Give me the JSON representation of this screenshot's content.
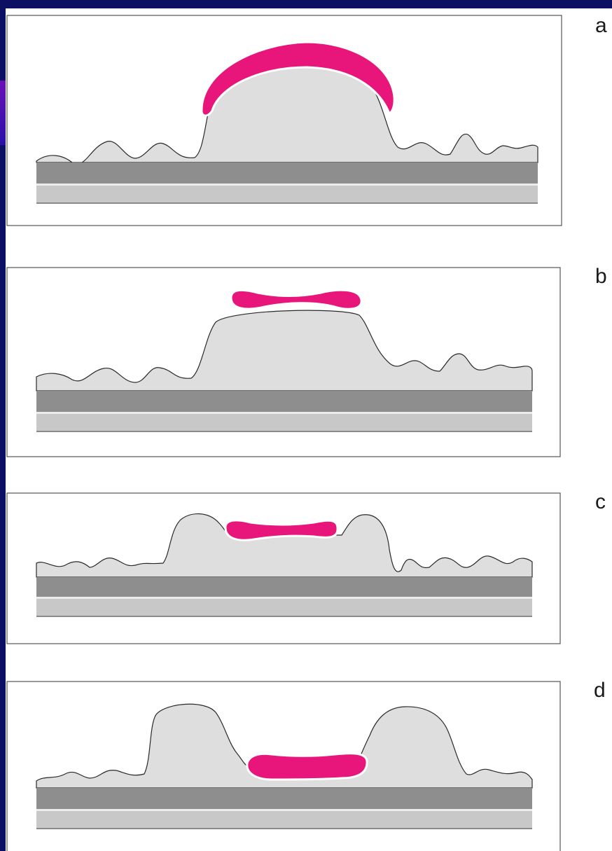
{
  "panels": [
    {
      "id": "a",
      "label": "a"
    },
    {
      "id": "b",
      "label": "b"
    },
    {
      "id": "c",
      "label": "c"
    },
    {
      "id": "d",
      "label": "d"
    }
  ],
  "colors": {
    "frame": "#0c0f62",
    "frame_accent": "#5a10c0",
    "background": "#ffffff",
    "tissue": "#dedede",
    "dark_band": "#8e8e8e",
    "light_band": "#c8c8c8",
    "highlight": "#e8157a",
    "outline": "#2a2a2a"
  }
}
